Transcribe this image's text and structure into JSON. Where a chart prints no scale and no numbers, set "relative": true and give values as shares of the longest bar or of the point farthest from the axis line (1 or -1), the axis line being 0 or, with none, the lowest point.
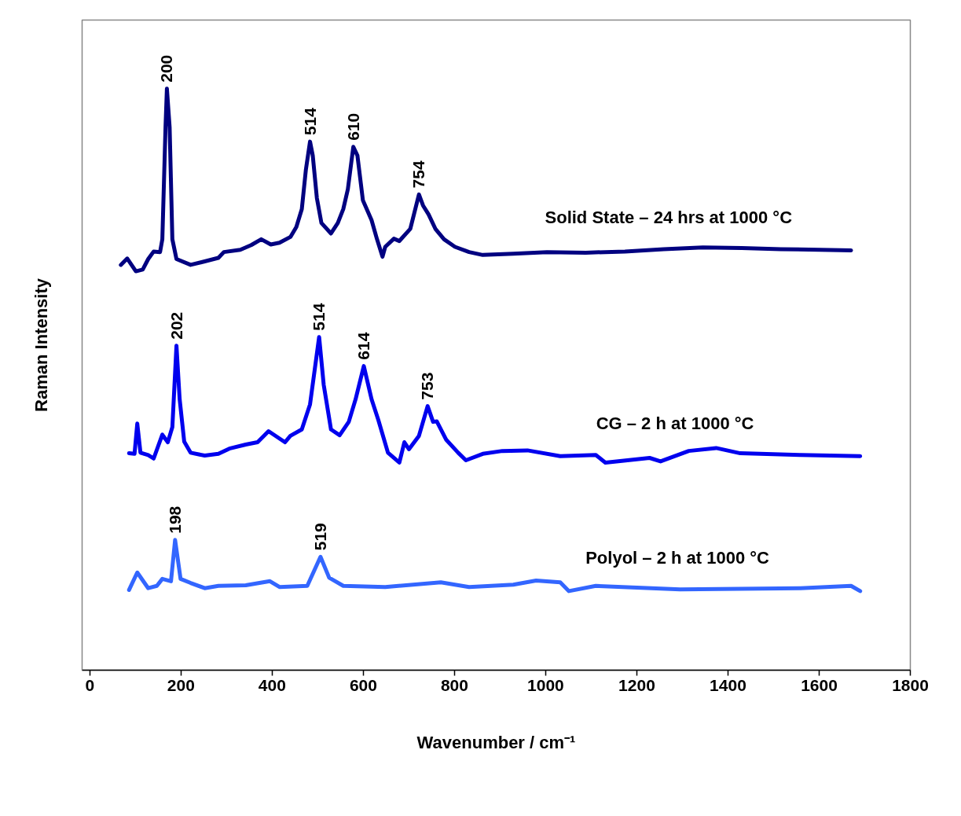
{
  "chart_data": {
    "type": "line",
    "relative": true,
    "xlabel": "Wavenumber / cm⁻¹",
    "ylabel": "Raman Intensity",
    "xlim": [
      -17,
      1800
    ],
    "xticks": [
      0,
      200,
      400,
      600,
      800,
      1000,
      1200,
      1400,
      1600,
      1800
    ],
    "series": [
      {
        "name": "Solid State – 24 hrs at 1000 °C",
        "color": "#000080",
        "x": [
          68,
          82,
          101,
          116,
          128,
          140,
          154,
          159,
          166,
          169,
          175,
          181,
          190,
          221,
          252,
          282,
          294,
          330,
          354,
          376,
          397,
          416,
          440,
          453,
          465,
          474,
          483,
          489,
          498,
          508,
          529,
          544,
          556,
          566,
          578,
          587,
          599,
          618,
          630,
          642,
          648,
          667,
          679,
          703,
          722,
          731,
          743,
          758,
          777,
          801,
          832,
          862,
          929,
          1003,
          1088,
          1174,
          1259,
          1345,
          1430,
          1516,
          1601,
          1670
        ],
        "values": [
          0.697,
          0.708,
          0.686,
          0.689,
          0.707,
          0.72,
          0.719,
          0.741,
          0.934,
          1.0,
          0.934,
          0.741,
          0.707,
          0.697,
          0.703,
          0.709,
          0.719,
          0.723,
          0.731,
          0.741,
          0.732,
          0.735,
          0.745,
          0.762,
          0.793,
          0.861,
          0.909,
          0.885,
          0.812,
          0.769,
          0.751,
          0.769,
          0.793,
          0.827,
          0.9,
          0.885,
          0.808,
          0.774,
          0.741,
          0.711,
          0.728,
          0.742,
          0.738,
          0.759,
          0.818,
          0.799,
          0.784,
          0.759,
          0.741,
          0.728,
          0.719,
          0.714,
          0.716,
          0.719,
          0.718,
          0.72,
          0.724,
          0.727,
          0.726,
          0.724,
          0.723,
          0.722
        ]
      },
      {
        "name": "CG – 2 h at 1000  °C",
        "color": "#0000ee",
        "x": [
          86,
          98,
          104,
          111,
          128,
          140,
          159,
          171,
          181,
          190,
          197,
          207,
          221,
          252,
          282,
          306,
          342,
          368,
          392,
          428,
          440,
          465,
          483,
          503,
          513,
          529,
          548,
          568,
          583,
          601,
          618,
          633,
          654,
          679,
          690,
          700,
          722,
          741,
          753,
          761,
          782,
          808,
          825,
          862,
          905,
          960,
          1032,
          1110,
          1131,
          1228,
          1252,
          1314,
          1374,
          1427,
          1559,
          1690
        ],
        "values": [
          0.373,
          0.372,
          0.424,
          0.374,
          0.37,
          0.364,
          0.405,
          0.392,
          0.418,
          0.558,
          0.466,
          0.393,
          0.374,
          0.369,
          0.372,
          0.381,
          0.388,
          0.392,
          0.411,
          0.392,
          0.403,
          0.414,
          0.457,
          0.573,
          0.491,
          0.414,
          0.404,
          0.427,
          0.466,
          0.523,
          0.466,
          0.43,
          0.374,
          0.357,
          0.392,
          0.38,
          0.403,
          0.454,
          0.427,
          0.428,
          0.396,
          0.374,
          0.361,
          0.372,
          0.377,
          0.378,
          0.368,
          0.37,
          0.357,
          0.365,
          0.359,
          0.377,
          0.382,
          0.373,
          0.37,
          0.368
        ]
      },
      {
        "name": "Polyol – 2 h at 1000 °C",
        "color": "#3366ff",
        "x": [
          86,
          104,
          128,
          147,
          159,
          178,
          187,
          199,
          221,
          252,
          282,
          342,
          395,
          416,
          477,
          506,
          525,
          556,
          648,
          770,
          832,
          929,
          979,
          1032,
          1051,
          1110,
          1295,
          1559,
          1670,
          1690
        ],
        "values": [
          0.138,
          0.168,
          0.141,
          0.145,
          0.157,
          0.153,
          0.224,
          0.157,
          0.15,
          0.141,
          0.145,
          0.146,
          0.153,
          0.143,
          0.145,
          0.195,
          0.159,
          0.145,
          0.143,
          0.151,
          0.143,
          0.147,
          0.154,
          0.151,
          0.136,
          0.145,
          0.139,
          0.141,
          0.145,
          0.136
        ]
      }
    ],
    "annotations": [
      {
        "text": "200",
        "x": 169,
        "y": 1.0
      },
      {
        "text": "514",
        "x": 483,
        "y": 0.909
      },
      {
        "text": "610",
        "x": 578,
        "y": 0.9
      },
      {
        "text": "754",
        "x": 722,
        "y": 0.818
      },
      {
        "text": "202",
        "x": 190,
        "y": 0.558
      },
      {
        "text": "514",
        "x": 503,
        "y": 0.573
      },
      {
        "text": "614",
        "x": 601,
        "y": 0.523
      },
      {
        "text": "753",
        "x": 741,
        "y": 0.454
      },
      {
        "text": "198",
        "x": 187,
        "y": 0.224
      },
      {
        "text": "519",
        "x": 506,
        "y": 0.195
      }
    ]
  }
}
